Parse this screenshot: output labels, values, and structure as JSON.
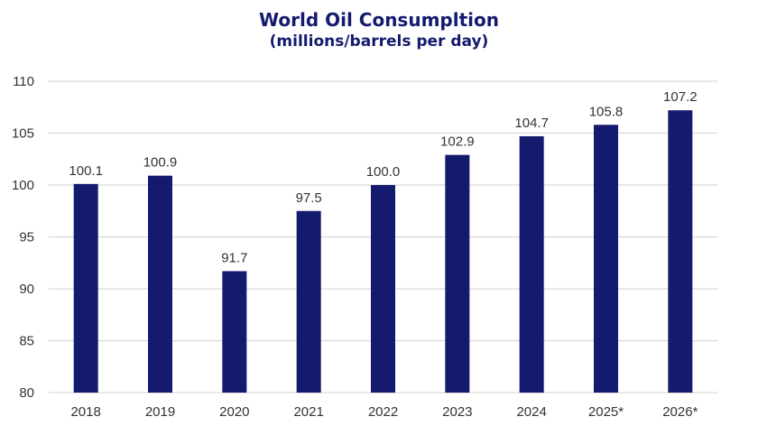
{
  "chart_data": {
    "type": "bar",
    "title": "World Oil Consumpltion",
    "subtitle": "(millions/barrels per day)",
    "xlabel": "",
    "ylabel": "",
    "categories": [
      "2018",
      "2019",
      "2020",
      "2021",
      "2022",
      "2023",
      "2024",
      "2025*",
      "2026*"
    ],
    "values": [
      100.1,
      100.9,
      91.7,
      97.5,
      100.0,
      102.9,
      104.7,
      105.8,
      107.2
    ],
    "data_labels": [
      "100.1",
      "100.9",
      "91.7",
      "97.5",
      "100.0",
      "102.9",
      "104.7",
      "105.8",
      "107.2"
    ],
    "ylim": [
      80,
      110
    ],
    "yticks": [
      80,
      85,
      90,
      95,
      100,
      105,
      110
    ],
    "grid": true,
    "legend": "none",
    "colors": {
      "bar": "#141a6e",
      "grid": "#d9d9d9",
      "title": "#141a6e",
      "text": "#333333"
    }
  }
}
